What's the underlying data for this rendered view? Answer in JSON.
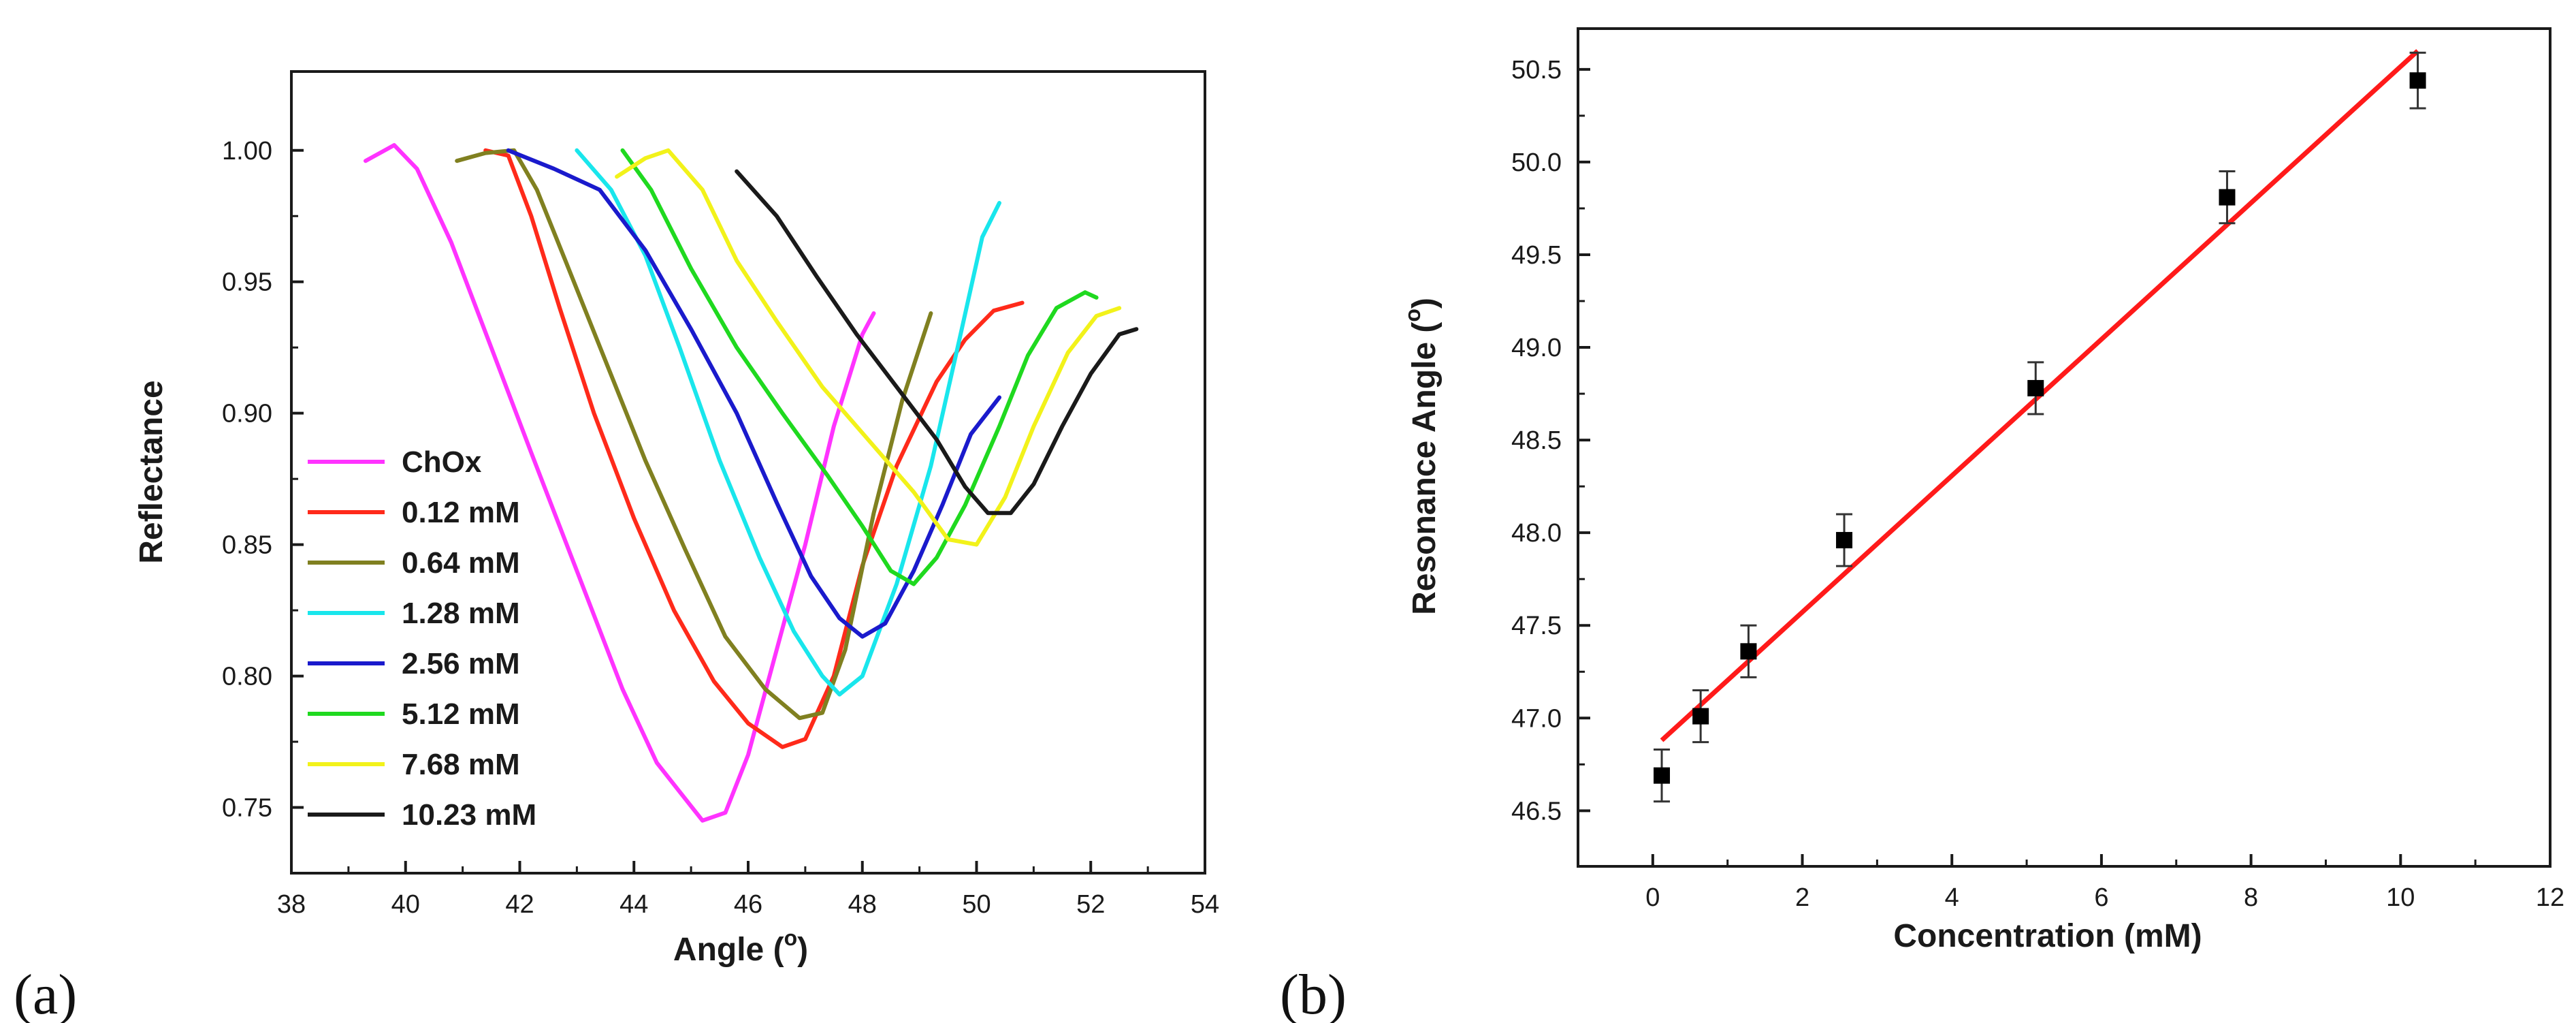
{
  "chart_data": [
    {
      "type": "line",
      "panel_label": "(a)",
      "xlabel": "Angle (",
      "xlabel_sup": "o",
      "xlabel_close": ")",
      "ylabel": "Reflectance",
      "xlim": [
        38,
        54
      ],
      "ylim": [
        0.725,
        1.03
      ],
      "xticks": [
        "38",
        "40",
        "42",
        "44",
        "46",
        "48",
        "50",
        "52",
        "54"
      ],
      "yticks": [
        "0.75",
        "0.80",
        "0.85",
        "0.90",
        "0.95",
        "1.00"
      ],
      "legend_position": "bottom-left",
      "series": [
        {
          "name": "ChOx",
          "color": "#ff33ff",
          "points": [
            [
              39.3,
              0.996
            ],
            [
              39.8,
              1.002
            ],
            [
              40.2,
              0.993
            ],
            [
              40.8,
              0.965
            ],
            [
              41.5,
              0.925
            ],
            [
              42.2,
              0.885
            ],
            [
              43,
              0.84
            ],
            [
              43.8,
              0.795
            ],
            [
              44.4,
              0.767
            ],
            [
              44.8,
              0.756
            ],
            [
              45.2,
              0.745
            ],
            [
              45.6,
              0.748
            ],
            [
              46,
              0.77
            ],
            [
              46.5,
              0.81
            ],
            [
              47,
              0.85
            ],
            [
              47.5,
              0.895
            ],
            [
              48,
              0.93
            ],
            [
              48.2,
              0.938
            ]
          ]
        },
        {
          "name": "0.12 mM",
          "color": "#ff2a1a",
          "points": [
            [
              41.4,
              1.0
            ],
            [
              41.8,
              0.998
            ],
            [
              42.2,
              0.975
            ],
            [
              42.7,
              0.94
            ],
            [
              43.3,
              0.9
            ],
            [
              44,
              0.86
            ],
            [
              44.7,
              0.825
            ],
            [
              45.4,
              0.798
            ],
            [
              46,
              0.782
            ],
            [
              46.6,
              0.773
            ],
            [
              47,
              0.776
            ],
            [
              47.5,
              0.8
            ],
            [
              48,
              0.842
            ],
            [
              48.6,
              0.88
            ],
            [
              49.3,
              0.912
            ],
            [
              49.8,
              0.928
            ],
            [
              50.3,
              0.939
            ],
            [
              50.8,
              0.942
            ]
          ]
        },
        {
          "name": "0.64 mM",
          "color": "#808020",
          "points": [
            [
              40.9,
              0.996
            ],
            [
              41.4,
              0.999
            ],
            [
              41.9,
              1.0
            ],
            [
              42.3,
              0.985
            ],
            [
              42.8,
              0.958
            ],
            [
              43.5,
              0.92
            ],
            [
              44.2,
              0.882
            ],
            [
              44.9,
              0.848
            ],
            [
              45.6,
              0.815
            ],
            [
              46.3,
              0.795
            ],
            [
              46.9,
              0.784
            ],
            [
              47.3,
              0.786
            ],
            [
              47.7,
              0.81
            ],
            [
              48.2,
              0.862
            ],
            [
              48.7,
              0.905
            ],
            [
              49.2,
              0.938
            ]
          ]
        },
        {
          "name": "1.28 mM",
          "color": "#19e6ec",
          "points": [
            [
              43,
              1.0
            ],
            [
              43.6,
              0.985
            ],
            [
              44.2,
              0.96
            ],
            [
              44.8,
              0.925
            ],
            [
              45.5,
              0.882
            ],
            [
              46.2,
              0.845
            ],
            [
              46.8,
              0.817
            ],
            [
              47.3,
              0.8
            ],
            [
              47.6,
              0.793
            ],
            [
              48,
              0.8
            ],
            [
              48.6,
              0.835
            ],
            [
              49.2,
              0.88
            ],
            [
              49.7,
              0.928
            ],
            [
              50.1,
              0.967
            ],
            [
              50.4,
              0.98
            ]
          ]
        },
        {
          "name": "2.56 mM",
          "color": "#1a1acc",
          "points": [
            [
              41.8,
              1.0
            ],
            [
              42.6,
              0.993
            ],
            [
              43.4,
              0.985
            ],
            [
              44.2,
              0.962
            ],
            [
              45,
              0.932
            ],
            [
              45.8,
              0.9
            ],
            [
              46.5,
              0.866
            ],
            [
              47.1,
              0.838
            ],
            [
              47.6,
              0.822
            ],
            [
              48,
              0.815
            ],
            [
              48.4,
              0.82
            ],
            [
              48.9,
              0.84
            ],
            [
              49.4,
              0.865
            ],
            [
              49.9,
              0.892
            ],
            [
              50.4,
              0.906
            ]
          ]
        },
        {
          "name": "5.12 mM",
          "color": "#1fd91f",
          "points": [
            [
              43.8,
              1.0
            ],
            [
              44.3,
              0.985
            ],
            [
              45,
              0.955
            ],
            [
              45.8,
              0.925
            ],
            [
              46.6,
              0.9
            ],
            [
              47.4,
              0.876
            ],
            [
              48,
              0.857
            ],
            [
              48.5,
              0.84
            ],
            [
              48.9,
              0.835
            ],
            [
              49.3,
              0.845
            ],
            [
              49.8,
              0.865
            ],
            [
              50.4,
              0.895
            ],
            [
              50.9,
              0.922
            ],
            [
              51.4,
              0.94
            ],
            [
              51.9,
              0.946
            ],
            [
              52.1,
              0.944
            ]
          ]
        },
        {
          "name": "7.68 mM",
          "color": "#f2f21a",
          "points": [
            [
              43.7,
              0.99
            ],
            [
              44.2,
              0.997
            ],
            [
              44.6,
              1.0
            ],
            [
              45.2,
              0.985
            ],
            [
              45.8,
              0.958
            ],
            [
              46.5,
              0.935
            ],
            [
              47.3,
              0.91
            ],
            [
              48.1,
              0.89
            ],
            [
              48.9,
              0.87
            ],
            [
              49.5,
              0.852
            ],
            [
              50,
              0.85
            ],
            [
              50.5,
              0.868
            ],
            [
              51,
              0.895
            ],
            [
              51.6,
              0.923
            ],
            [
              52.1,
              0.937
            ],
            [
              52.5,
              0.94
            ]
          ]
        },
        {
          "name": "10.23 mM",
          "color": "#1a1a1a",
          "points": [
            [
              45.8,
              0.992
            ],
            [
              46.5,
              0.975
            ],
            [
              47.2,
              0.952
            ],
            [
              47.9,
              0.93
            ],
            [
              48.6,
              0.91
            ],
            [
              49.3,
              0.89
            ],
            [
              49.8,
              0.872
            ],
            [
              50.2,
              0.862
            ],
            [
              50.6,
              0.862
            ],
            [
              51,
              0.873
            ],
            [
              51.5,
              0.895
            ],
            [
              52,
              0.915
            ],
            [
              52.5,
              0.93
            ],
            [
              52.8,
              0.932
            ]
          ]
        }
      ]
    },
    {
      "type": "scatter",
      "panel_label": "(b)",
      "xlabel": "Concentration (mM)",
      "ylabel": "Resonance Angle (",
      "ylabel_sup": "o",
      "ylabel_close": ")",
      "xlim": [
        -1,
        12
      ],
      "ylim": [
        46.2,
        50.72
      ],
      "xticks": [
        "0",
        "2",
        "4",
        "6",
        "8",
        "10",
        "12"
      ],
      "yticks": [
        "46.5",
        "47.0",
        "47.5",
        "48.0",
        "48.5",
        "49.0",
        "49.5",
        "50.0",
        "50.5"
      ],
      "marker_color": "#000000",
      "fit_color": "#ff1a1a",
      "points": [
        {
          "x": 0.12,
          "y": 46.69,
          "err": 0.14
        },
        {
          "x": 0.64,
          "y": 47.01,
          "err": 0.14
        },
        {
          "x": 1.28,
          "y": 47.36,
          "err": 0.14
        },
        {
          "x": 2.56,
          "y": 47.96,
          "err": 0.14
        },
        {
          "x": 5.12,
          "y": 48.78,
          "err": 0.14
        },
        {
          "x": 7.68,
          "y": 49.81,
          "err": 0.14
        },
        {
          "x": 10.23,
          "y": 50.44,
          "err": 0.15
        }
      ],
      "fit_line": {
        "x": [
          0.12,
          10.23
        ],
        "y": [
          46.88,
          50.6
        ]
      }
    }
  ]
}
